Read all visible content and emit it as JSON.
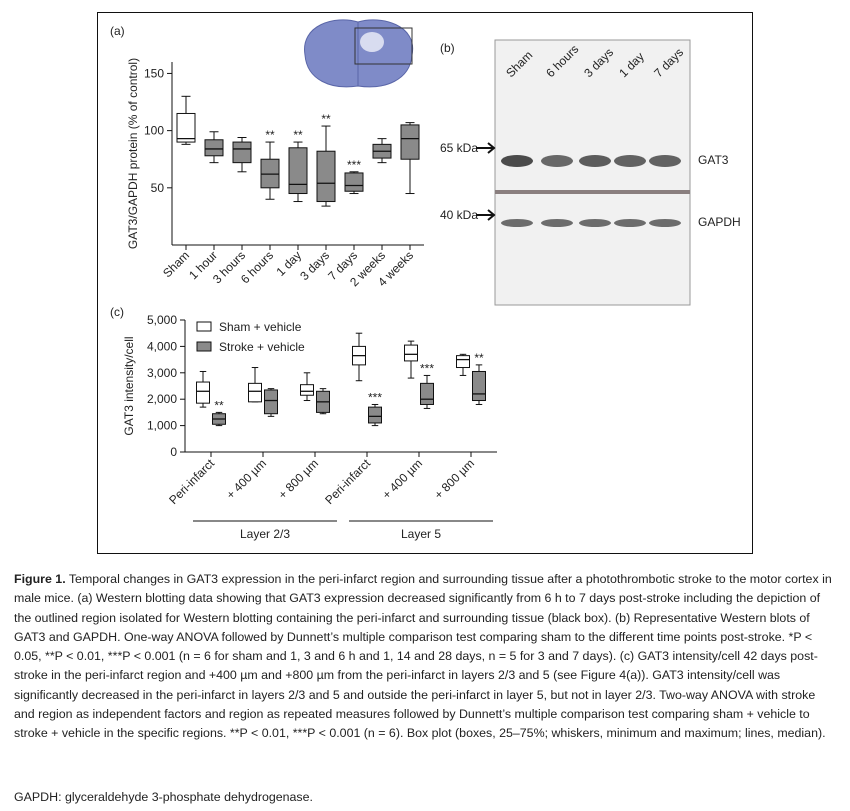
{
  "chart_data": [
    {
      "type": "box",
      "panel_label": "(a)",
      "ylabel": "GAT3/GAPDH protein (% of control)",
      "categories": [
        "Sham",
        "1 hour",
        "3 hours",
        "6 hours",
        "1 day",
        "3 days",
        "7 days",
        "2 weeks",
        "4 weeks"
      ],
      "series": [
        {
          "colors": [
            "#ffffff",
            "#8a8a8a",
            "#8a8a8a",
            "#8a8a8a",
            "#8a8a8a",
            "#8a8a8a",
            "#8a8a8a",
            "#8a8a8a",
            "#8a8a8a"
          ],
          "values": [
            {
              "min": 88,
              "q1": 90,
              "median": 93,
              "q3": 115,
              "max": 130
            },
            {
              "min": 72,
              "q1": 78,
              "median": 84,
              "q3": 92,
              "max": 99
            },
            {
              "min": 64,
              "q1": 72,
              "median": 84,
              "q3": 90,
              "max": 94
            },
            {
              "min": 40,
              "q1": 50,
              "median": 62,
              "q3": 75,
              "max": 90
            },
            {
              "min": 38,
              "q1": 45,
              "median": 53,
              "q3": 85,
              "max": 90
            },
            {
              "min": 34,
              "q1": 38,
              "median": 54,
              "q3": 82,
              "max": 104
            },
            {
              "min": 45,
              "q1": 47,
              "median": 52,
              "q3": 63,
              "max": 64
            },
            {
              "min": 72,
              "q1": 76,
              "median": 82,
              "q3": 88,
              "max": 93
            },
            {
              "min": 45,
              "q1": 75,
              "median": 93,
              "q3": 105,
              "max": 107
            }
          ],
          "annotations": [
            null,
            null,
            null,
            "**",
            "**",
            "**",
            "***",
            null,
            null
          ]
        }
      ],
      "ylim": [
        0,
        160
      ],
      "yticks": [
        50,
        100,
        150
      ]
    },
    {
      "type": "box",
      "panel_label": "(c)",
      "ylabel": "GAT3 intensity/cell",
      "categories": [
        "Peri-infarct",
        "+ 400 µm",
        "+ 800 µm",
        "Peri-infarct",
        "+ 400 µm",
        "+ 800 µm"
      ],
      "groups": [
        "Layer 2/3",
        "Layer 5"
      ],
      "series": [
        {
          "name": "Sham + vehicle",
          "color": "#ffffff",
          "values": [
            {
              "min": 1700,
              "q1": 1850,
              "median": 2300,
              "q3": 2650,
              "max": 3050
            },
            {
              "min": 1900,
              "q1": 1900,
              "median": 2300,
              "q3": 2600,
              "max": 3200
            },
            {
              "min": 1950,
              "q1": 2150,
              "median": 2300,
              "q3": 2550,
              "max": 3000
            },
            {
              "min": 2700,
              "q1": 3300,
              "median": 3650,
              "q3": 4000,
              "max": 4500
            },
            {
              "min": 2800,
              "q1": 3450,
              "median": 3700,
              "q3": 4050,
              "max": 4200
            },
            {
              "min": 2900,
              "q1": 3200,
              "median": 3500,
              "q3": 3650,
              "max": 3700
            }
          ],
          "annotations": [
            null,
            null,
            null,
            null,
            null,
            null
          ]
        },
        {
          "name": "Stroke + vehicle",
          "color": "#8a8a8a",
          "values": [
            {
              "min": 1000,
              "q1": 1050,
              "median": 1250,
              "q3": 1450,
              "max": 1500
            },
            {
              "min": 1350,
              "q1": 1450,
              "median": 1950,
              "q3": 2350,
              "max": 2400
            },
            {
              "min": 1450,
              "q1": 1500,
              "median": 1900,
              "q3": 2300,
              "max": 2400
            },
            {
              "min": 1000,
              "q1": 1100,
              "median": 1350,
              "q3": 1700,
              "max": 1800
            },
            {
              "min": 1650,
              "q1": 1800,
              "median": 2000,
              "q3": 2600,
              "max": 2900
            },
            {
              "min": 1800,
              "q1": 1950,
              "median": 2200,
              "q3": 3050,
              "max": 3300
            }
          ],
          "annotations": [
            "**",
            null,
            null,
            "***",
            "***",
            "**"
          ]
        }
      ],
      "ylim": [
        0,
        5000
      ],
      "yticks": [
        0,
        {
          "value": 1000,
          "label": "1,000"
        },
        {
          "value": 2000,
          "label": "2,000"
        },
        {
          "value": 3000,
          "label": "3,000"
        },
        {
          "value": 4000,
          "label": "4,000"
        },
        {
          "value": 5000,
          "label": "5,000"
        }
      ]
    }
  ],
  "blot": {
    "panel_label": "(b)",
    "lanes": [
      "Sham",
      "6 hours",
      "3 days",
      "1 day",
      "7 days"
    ],
    "markers": [
      "65 kDa",
      "40 kDa"
    ],
    "bands": [
      "GAT3",
      "GAPDH"
    ]
  },
  "caption": {
    "label": "Figure 1.",
    "text": "Temporal changes in GAT3 expression in the peri-infarct region and surrounding tissue after a photothrombotic stroke to the motor cortex in male mice. (a) Western blotting data showing that GAT3 expression decreased significantly from 6 h to 7 days post-stroke including the depiction of the outlined region isolated for Western blotting containing the peri-infarct and surrounding tissue (black box). (b) Representative Western blots of GAT3 and GAPDH. One-way ANOVA followed by Dunnett’s multiple comparison test comparing sham to the different time points post-stroke. *P < 0.05, **P < 0.01, ***P < 0.001 (n = 6 for sham and 1, 3 and 6 h and 1, 14 and 28 days, n = 5 for 3 and 7 days). (c) GAT3 intensity/cell 42 days post-stroke in the peri-infarct region and +400 µm and +800 µm from the peri-infarct in layers 2/3 and 5 (see Figure 4(a)). GAT3 intensity/cell was significantly decreased in the peri-infarct in layers 2/3 and 5 and outside the peri-infarct in layer 5, but not in layer 2/3. Two-way ANOVA with stroke and region as independent factors and region as repeated measures followed by Dunnett’s multiple comparison test comparing sham + vehicle to stroke + vehicle in the specific regions. **P < 0.01, ***P < 0.001 (n = 6). Box plot (boxes, 25–75%; whiskers, minimum and maximum; lines, median).",
    "footnote": "GAPDH: glyceraldehyde 3-phosphate dehydrogenase."
  }
}
